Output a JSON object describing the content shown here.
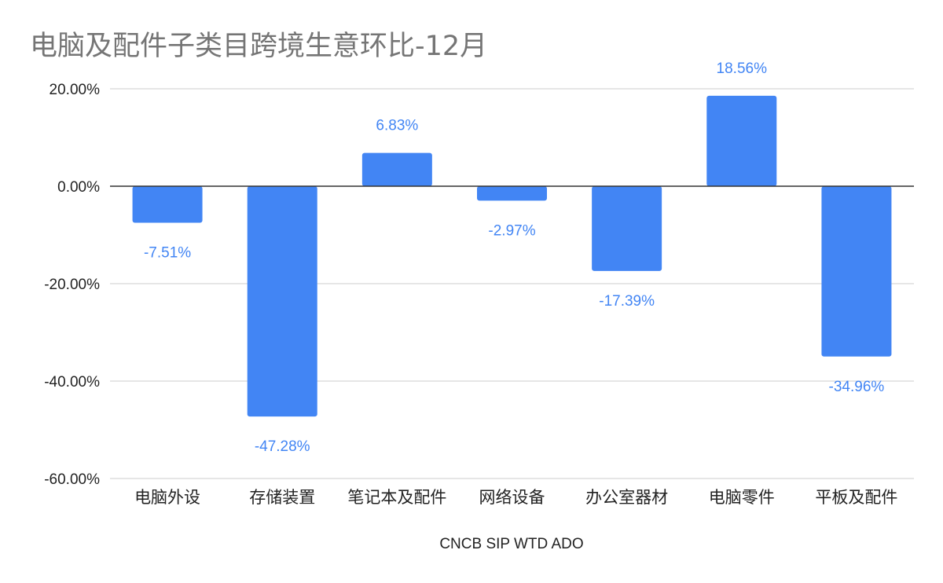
{
  "chart_data": {
    "type": "bar",
    "title": "电脑及配件子类目跨境生意环比-12月",
    "xlabel": "CNCB SIP WTD ADO",
    "ylabel": "",
    "categories": [
      "电脑外设",
      "存储装置",
      "笔记本及配件",
      "网络设备",
      "办公室器材",
      "电脑零件",
      "平板及配件"
    ],
    "series": [
      {
        "values": [
          -7.51,
          -47.28,
          6.83,
          -2.97,
          -17.39,
          18.56,
          -34.96
        ],
        "labels": [
          "-7.51%",
          "-47.28%",
          "6.83%",
          "-2.97%",
          "-17.39%",
          "18.56%",
          "-34.96%"
        ]
      }
    ],
    "ylim": [
      -60,
      20
    ],
    "yticks": [
      20,
      0,
      -20,
      -40,
      -60
    ],
    "ytick_labels": [
      "20.00%",
      "0.00%",
      "-20.00%",
      "-40.00%",
      "-60.00%"
    ],
    "grid": true,
    "legend": "none",
    "colors": {
      "bar": "#4285f4",
      "data_label": "#4285f4",
      "grid": "#cccccc",
      "zero_line": "#333333"
    }
  }
}
